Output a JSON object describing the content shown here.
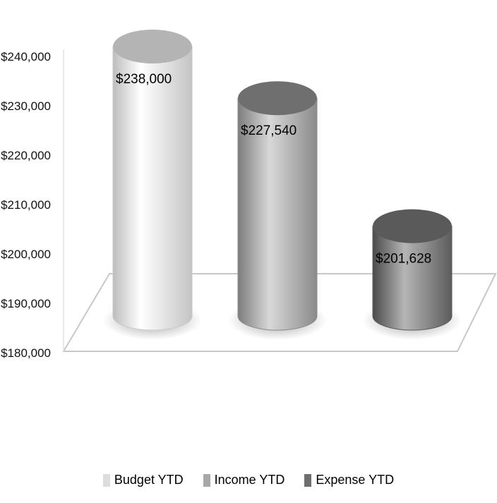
{
  "chart_data": {
    "type": "bar",
    "style": "3d-cylinder",
    "categories": [
      "Budget YTD",
      "Income YTD",
      "Expense YTD"
    ],
    "values": [
      238000,
      227540,
      201628
    ],
    "data_labels": [
      "$238,000",
      "$227,540",
      "$201,628"
    ],
    "ylim": [
      180000,
      240000
    ],
    "y_ticks": [
      180000,
      190000,
      200000,
      210000,
      220000,
      230000,
      240000
    ],
    "y_tick_labels": [
      "$180,000",
      "$190,000",
      "$200,000",
      "$210,000",
      "$220,000",
      "$230,000",
      "$240,000"
    ],
    "title": "",
    "xlabel": "",
    "ylabel": "",
    "legend": {
      "placement": "bottom",
      "entries": [
        "Budget  YTD",
        "Income YTD",
        "Expense YTD"
      ]
    },
    "grid": false,
    "colors": [
      "#e6e6e6",
      "#a8a8a8",
      "#6e6e6e"
    ]
  }
}
